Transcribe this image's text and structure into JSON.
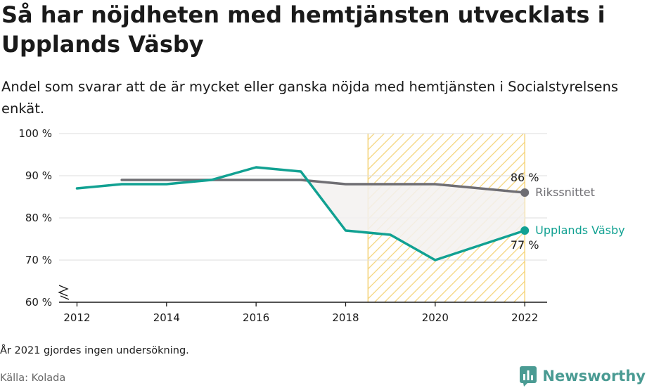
{
  "title": "Så har nöjdheten med hemtjänsten utvecklats i Upplands Väsby",
  "subtitle": "Andel som svarar att de är mycket eller ganska nöjda med hemtjänsten i Socialstyrelsens enkät.",
  "note": "År 2021 gjordes ingen undersökning.",
  "source": "Källa: Kolada",
  "brand": {
    "name": "Newsworthy",
    "icon": "newsworthy-logo-icon"
  },
  "colors": {
    "upplands": "#11a192",
    "riks": "#6f6e73",
    "highlight": "#f5d47a",
    "gap_fill": "#f3f1f0",
    "grid": "#dddddd",
    "brand": "#4a9b93"
  },
  "chart_data": {
    "type": "line",
    "xlim": [
      2011.6,
      2022.5
    ],
    "ylim": [
      60,
      100
    ],
    "y_ticks": [
      60,
      70,
      80,
      90,
      100
    ],
    "y_tick_labels": [
      "60 %",
      "70 %",
      "80 %",
      "90 %",
      "100 %"
    ],
    "x_ticks": [
      2012,
      2014,
      2016,
      2018,
      2020,
      2022
    ],
    "x_tick_labels": [
      "2012",
      "2014",
      "2016",
      "2018",
      "2020",
      "2022"
    ],
    "grid": true,
    "axis_break": true,
    "highlight_range": [
      2018.5,
      2022
    ],
    "series": [
      {
        "name": "Rikssnittet",
        "color": "#6f6e73",
        "x": [
          2013,
          2014,
          2015,
          2016,
          2017,
          2018,
          2019,
          2020,
          2022
        ],
        "values": [
          89,
          89,
          89,
          89,
          89,
          88,
          88,
          88,
          86
        ],
        "end_label": "86 %"
      },
      {
        "name": "Upplands Väsby",
        "color": "#11a192",
        "x": [
          2012,
          2013,
          2014,
          2015,
          2016,
          2017,
          2018,
          2019,
          2020,
          2022
        ],
        "values": [
          87,
          88,
          88,
          89,
          92,
          91,
          77,
          76,
          70,
          77
        ],
        "end_label": "77 %"
      }
    ]
  }
}
